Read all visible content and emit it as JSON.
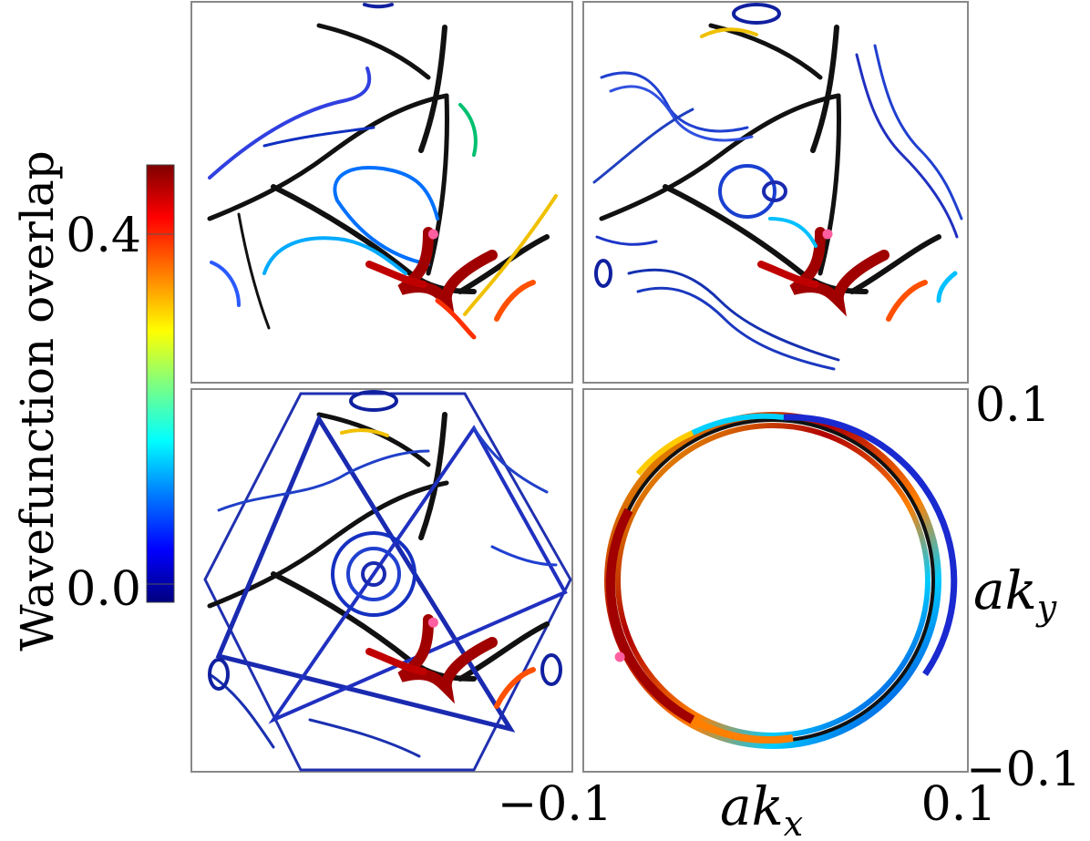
{
  "colorbar": {
    "label": "Wavefunction overlap",
    "ticks": [
      {
        "value": 0.4,
        "label": "0.4"
      },
      {
        "value": 0.0,
        "label": "0.0"
      }
    ],
    "range": [
      -0.02,
      0.48
    ],
    "colormap": [
      "#00007f",
      "#0000ff",
      "#007fff",
      "#00ffff",
      "#7fff7f",
      "#ffff00",
      "#ff7f00",
      "#ff0000",
      "#7f0000"
    ]
  },
  "axes": {
    "xlabel_base": "ak",
    "xlabel_sub": "x",
    "ylabel_base": "ak",
    "ylabel_sub": "y",
    "x_ticks": [
      "−0.1",
      "0.1"
    ],
    "y_ticks": [
      "0.1",
      "−0.1"
    ],
    "x_range": [
      -0.1,
      0.1
    ],
    "y_range": [
      -0.1,
      0.1
    ]
  },
  "marker_color": "#ff5fa0",
  "chart_data": [
    {
      "type": "scatter",
      "panel": "top-left",
      "description_free": true,
      "marker": {
        "x": 0.027,
        "y": -0.022
      }
    },
    {
      "type": "scatter",
      "panel": "top-right",
      "marker": {
        "x": 0.027,
        "y": -0.022
      }
    },
    {
      "type": "scatter",
      "panel": "bottom-left",
      "marker": {
        "x": 0.027,
        "y": -0.022
      }
    },
    {
      "type": "line",
      "panel": "bottom-right",
      "marker": {
        "x": -0.081,
        "y": -0.04
      },
      "curves": [
        {
          "shape": "circle",
          "center": [
            0.0,
            0.0
          ],
          "radius": 0.082
        }
      ]
    }
  ]
}
